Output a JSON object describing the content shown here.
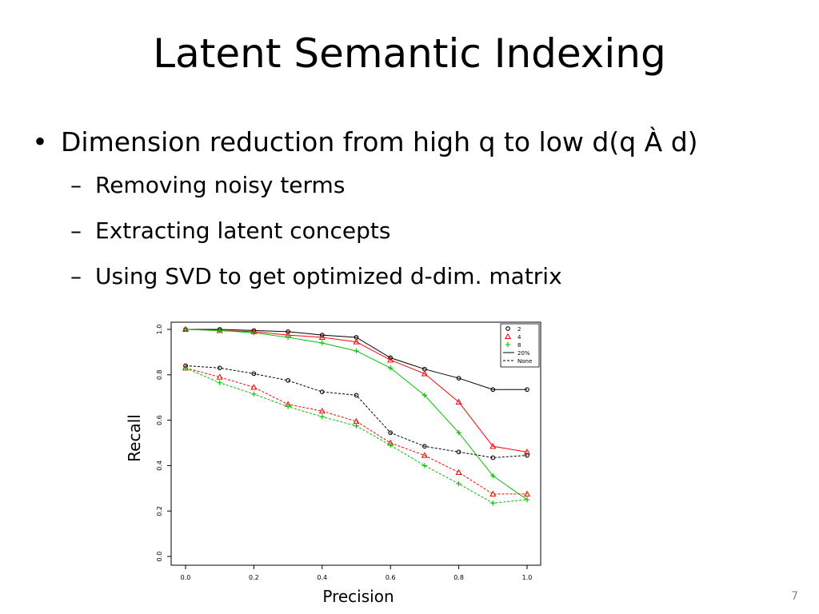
{
  "slide": {
    "title": "Latent Semantic Indexing",
    "bullet": "Dimension reduction from high q to low d(q À d)",
    "sub_bullets": [
      "Removing noisy terms",
      "Extracting latent concepts",
      "Using SVD to get optimized d-dim. matrix"
    ],
    "page_number": "7"
  },
  "chart_data": {
    "type": "line",
    "title": "",
    "xlabel": "Precision",
    "ylabel": "Recall",
    "xlim": [
      0.0,
      1.0
    ],
    "ylim": [
      0.0,
      1.0
    ],
    "xticks": [
      "0.0",
      "0.2",
      "0.4",
      "0.6",
      "0.8",
      "1.0"
    ],
    "yticks": [
      "0.0",
      "0.2",
      "0.4",
      "0.6",
      "0.8",
      "1.0"
    ],
    "grid": false,
    "legend_position": "top-right",
    "legend": [
      {
        "label": "2",
        "marker": "circle",
        "color": "#000000"
      },
      {
        "label": "4",
        "marker": "triangle",
        "color": "#ff0000"
      },
      {
        "label": "8",
        "marker": "plus",
        "color": "#00c000"
      },
      {
        "label": "20%",
        "line": "solid",
        "color": "#000000"
      },
      {
        "label": "None",
        "line": "dashed",
        "color": "#000000"
      }
    ],
    "x": [
      0.0,
      0.1,
      0.2,
      0.3,
      0.4,
      0.5,
      0.6,
      0.7,
      0.8,
      0.9,
      1.0
    ],
    "series": [
      {
        "dim": "2",
        "reduction": "20%",
        "color": "#000000",
        "marker": "circle",
        "dash": false,
        "values": [
          1.0,
          1.0,
          0.995,
          0.99,
          0.975,
          0.965,
          0.875,
          0.825,
          0.785,
          0.735,
          0.735
        ]
      },
      {
        "dim": "4",
        "reduction": "20%",
        "color": "#ff0000",
        "marker": "triangle",
        "dash": false,
        "values": [
          1.0,
          0.995,
          0.99,
          0.975,
          0.965,
          0.945,
          0.865,
          0.805,
          0.68,
          0.485,
          0.46
        ]
      },
      {
        "dim": "8",
        "reduction": "20%",
        "color": "#00c000",
        "marker": "plus",
        "dash": false,
        "values": [
          1.0,
          0.995,
          0.985,
          0.965,
          0.94,
          0.905,
          0.83,
          0.71,
          0.545,
          0.355,
          0.25
        ]
      },
      {
        "dim": "2",
        "reduction": "None",
        "color": "#000000",
        "marker": "circle",
        "dash": true,
        "values": [
          0.84,
          0.83,
          0.805,
          0.775,
          0.725,
          0.71,
          0.545,
          0.485,
          0.46,
          0.435,
          0.445
        ]
      },
      {
        "dim": "4",
        "reduction": "None",
        "color": "#ff0000",
        "marker": "triangle",
        "dash": true,
        "values": [
          0.83,
          0.79,
          0.745,
          0.67,
          0.64,
          0.595,
          0.5,
          0.445,
          0.37,
          0.275,
          0.275
        ]
      },
      {
        "dim": "8",
        "reduction": "None",
        "color": "#00c000",
        "marker": "plus",
        "dash": true,
        "values": [
          0.83,
          0.765,
          0.715,
          0.66,
          0.615,
          0.575,
          0.49,
          0.4,
          0.32,
          0.235,
          0.25
        ]
      }
    ]
  }
}
